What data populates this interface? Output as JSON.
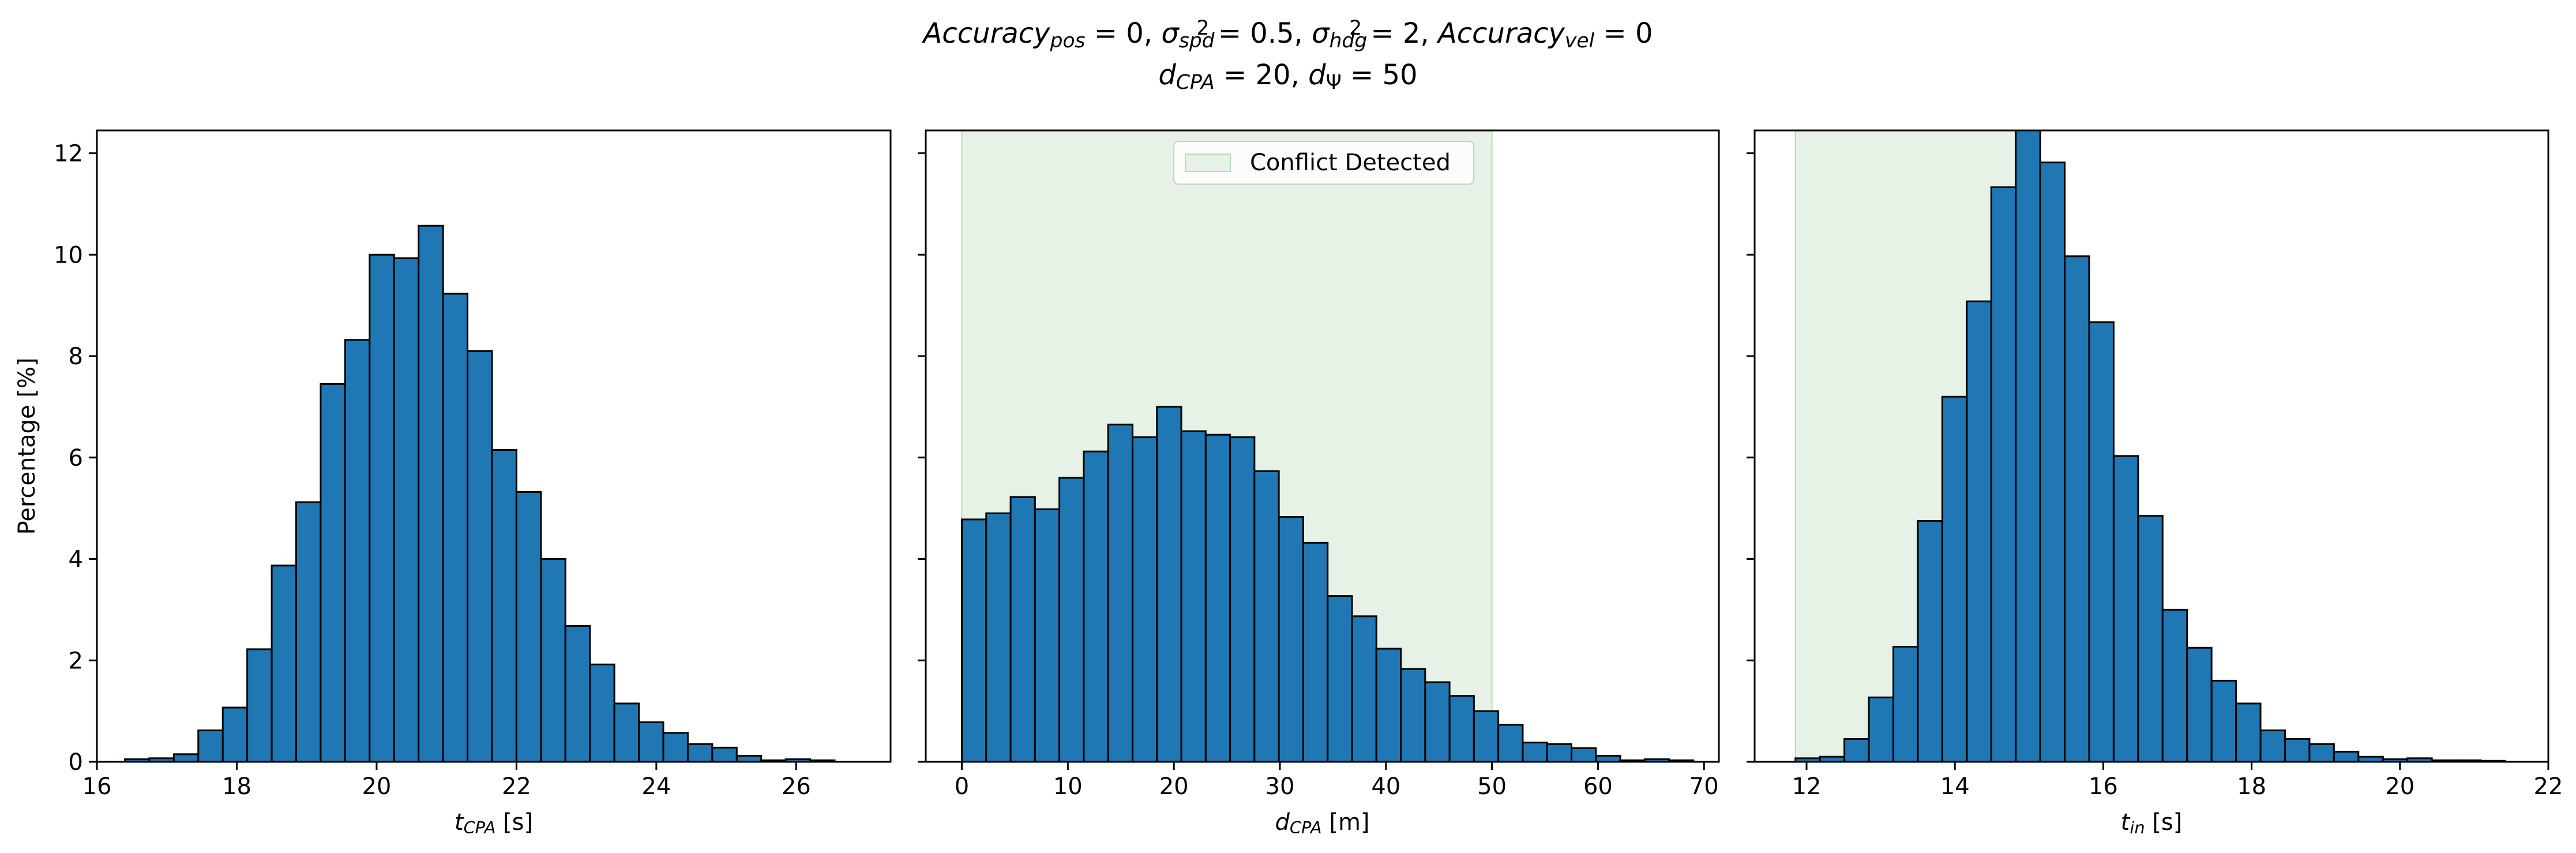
{
  "figure": {
    "title_line1": {
      "segments": [
        {
          "t": "Accuracy",
          "s": "i"
        },
        {
          "t": "pos",
          "s": "sub-i"
        },
        {
          "t": " = 0, "
        },
        {
          "t": "σ",
          "s": "i"
        },
        {
          "t": "spd",
          "s": "sub-i"
        },
        {
          "t": "2",
          "s": "sup"
        },
        {
          "t": " = 0.5, "
        },
        {
          "t": "σ",
          "s": "i"
        },
        {
          "t": "hdg",
          "s": "sub-i"
        },
        {
          "t": "2",
          "s": "sup"
        },
        {
          "t": " = 2, "
        },
        {
          "t": "Accuracy",
          "s": "i"
        },
        {
          "t": "vel",
          "s": "sub-i"
        },
        {
          "t": " = 0"
        }
      ]
    },
    "title_line2": {
      "segments": [
        {
          "t": "d",
          "s": "i"
        },
        {
          "t": "CPA",
          "s": "sub-i"
        },
        {
          "t": " = 20, "
        },
        {
          "t": "d",
          "s": "i"
        },
        {
          "t": "Ψ",
          "s": "sub"
        },
        {
          "t": " = 50"
        }
      ]
    },
    "colors": {
      "bar": "#1f77b4",
      "bar_edge": "#000000",
      "span": "#e5f2e5",
      "span_edge": "#b7ddb7"
    }
  },
  "chart_data": [
    {
      "type": "bar",
      "ylabel": "Percentage [%]",
      "xlabel": {
        "segments": [
          {
            "t": "t",
            "s": "i"
          },
          {
            "t": "CPA",
            "s": "sub-i"
          },
          {
            "t": " [s]"
          }
        ]
      },
      "xlim": [
        16.0,
        27.35
      ],
      "ylim": [
        0,
        12.45
      ],
      "xticks": [
        16,
        18,
        20,
        22,
        24,
        26
      ],
      "yticks": [
        0,
        2,
        4,
        6,
        8,
        10,
        12
      ],
      "bin_start": 16.4,
      "bin_width": 0.35,
      "values": [
        0.05,
        0.07,
        0.15,
        0.62,
        1.07,
        2.22,
        3.87,
        5.12,
        7.45,
        8.32,
        10.0,
        9.93,
        10.57,
        9.23,
        8.1,
        6.15,
        5.32,
        4.0,
        2.68,
        1.92,
        1.15,
        0.78,
        0.57,
        0.35,
        0.28,
        0.12,
        0.03,
        0.05,
        0.03
      ],
      "span": null,
      "legend": null
    },
    {
      "type": "bar",
      "ylabel": "",
      "xlabel": {
        "segments": [
          {
            "t": "d",
            "s": "i"
          },
          {
            "t": "CPA",
            "s": "sub-i"
          },
          {
            "t": " [m]"
          }
        ]
      },
      "xlim": [
        -3.4,
        71.4
      ],
      "ylim": [
        0,
        12.45
      ],
      "xticks": [
        0,
        10,
        20,
        30,
        40,
        50,
        60,
        70
      ],
      "yticks": [
        0,
        2,
        4,
        6,
        8,
        10,
        12
      ],
      "bin_start": 0,
      "bin_width": 2.3,
      "values": [
        4.78,
        4.9,
        5.22,
        4.98,
        5.6,
        6.12,
        6.65,
        6.4,
        7.0,
        6.52,
        6.45,
        6.4,
        5.73,
        4.83,
        4.32,
        3.27,
        2.87,
        2.23,
        1.83,
        1.57,
        1.3,
        1.0,
        0.73,
        0.38,
        0.35,
        0.27,
        0.12,
        0.03,
        0.05,
        0.03
      ],
      "span": {
        "from": 0,
        "to": 50
      },
      "legend": {
        "label": "Conflict Detected",
        "placement": "upper center"
      }
    },
    {
      "type": "bar",
      "ylabel": "",
      "xlabel": {
        "segments": [
          {
            "t": "t",
            "s": "i"
          },
          {
            "t": "in",
            "s": "sub-i"
          },
          {
            "t": " [s]"
          }
        ]
      },
      "xlim": [
        11.3,
        22.0
      ],
      "ylim": [
        0,
        12.45
      ],
      "xticks": [
        12,
        14,
        16,
        18,
        20,
        22
      ],
      "yticks": [
        0,
        2,
        4,
        6,
        8,
        10,
        12
      ],
      "bin_start": 11.85,
      "bin_width": 0.33,
      "values": [
        0.07,
        0.1,
        0.45,
        1.27,
        2.27,
        4.75,
        7.2,
        9.08,
        11.33,
        12.45,
        11.82,
        9.97,
        8.67,
        6.03,
        4.85,
        3.0,
        2.25,
        1.6,
        1.15,
        0.62,
        0.45,
        0.35,
        0.2,
        0.1,
        0.05,
        0.07,
        0.03,
        0.03,
        0.02
      ],
      "span": {
        "from": 11.85,
        "to": 14.85
      },
      "legend": null
    }
  ]
}
